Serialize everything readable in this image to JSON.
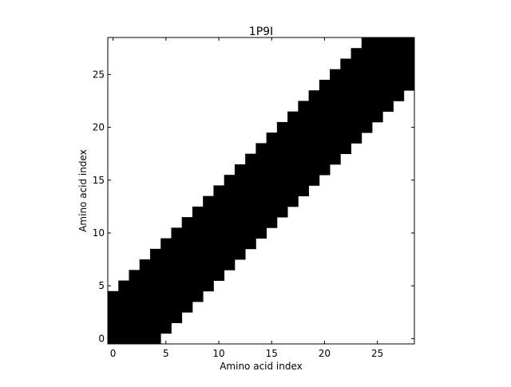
{
  "chart_data": {
    "type": "heatmap",
    "title": "1P9I",
    "xlabel": "Amino acid index",
    "ylabel": "Amino acid index",
    "n": 29,
    "band_halfwidth": 4,
    "xlim": [
      -0.5,
      28.5
    ],
    "ylim": [
      -0.5,
      28.5
    ],
    "xticks": [
      0,
      5,
      10,
      15,
      20,
      25
    ],
    "yticks": [
      0,
      5,
      10,
      15,
      20,
      25
    ],
    "xtick_labels": [
      "0",
      "5",
      "10",
      "15",
      "20",
      "25"
    ],
    "ytick_labels": [
      "0",
      "5",
      "10",
      "15",
      "20",
      "25"
    ],
    "cell_rule": "cell (i, j) is black when |i - j| <= 4, white otherwise",
    "colors": {
      "filled": "#000000",
      "empty": "#ffffff"
    },
    "grid": false,
    "legend": "none"
  }
}
